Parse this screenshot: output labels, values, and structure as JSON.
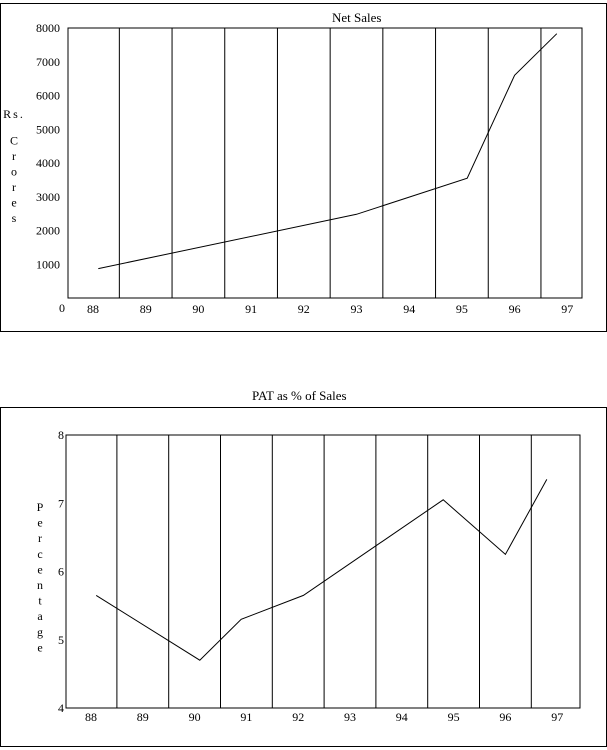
{
  "chart_data": [
    {
      "type": "line",
      "title": "Net Sales",
      "ylabel": "Rs. Crores",
      "categories": [
        "88",
        "89",
        "90",
        "91",
        "92",
        "93",
        "94",
        "95",
        "96",
        "97"
      ],
      "x": [
        88.1,
        93.0,
        95.1,
        96.0,
        96.8
      ],
      "values": [
        870,
        2480,
        3550,
        6600,
        7830
      ],
      "yticks": [
        1000,
        2000,
        3000,
        4000,
        5000,
        6000,
        7000,
        8000
      ],
      "origin_label": "0",
      "ylim": [
        0,
        8000
      ],
      "grid": "vertical"
    },
    {
      "type": "line",
      "title": "PAT  as  %  of Sales",
      "ylabel": "Percentage",
      "categories": [
        "88",
        "89",
        "90",
        "91",
        "92",
        "93",
        "94",
        "95",
        "96",
        "97"
      ],
      "x": [
        88.1,
        90.1,
        90.9,
        92.1,
        94.8,
        96.0,
        96.8
      ],
      "values": [
        5.65,
        4.7,
        5.3,
        5.65,
        7.05,
        6.25,
        7.35
      ],
      "yticks": [
        4,
        5,
        6,
        7,
        8
      ],
      "ylim": [
        4,
        8
      ],
      "grid": "vertical"
    }
  ]
}
